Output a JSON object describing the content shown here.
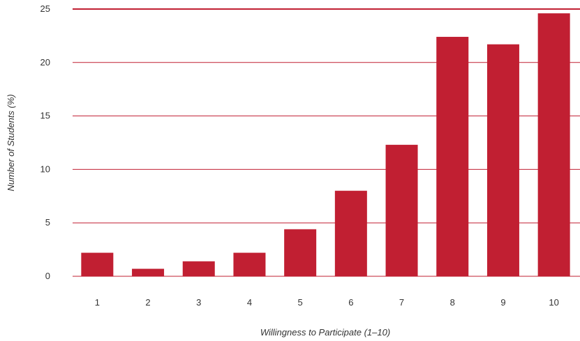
{
  "chart_data": {
    "type": "bar",
    "categories": [
      "1",
      "2",
      "3",
      "4",
      "5",
      "6",
      "7",
      "8",
      "9",
      "10"
    ],
    "values": [
      2.2,
      0.7,
      1.4,
      2.2,
      4.4,
      8.0,
      12.3,
      22.4,
      21.7,
      24.6
    ],
    "title": "",
    "xlabel": "Willingness to Participate (1–10)",
    "ylabel": "Number of Students (%)",
    "ylim": [
      0,
      25
    ],
    "yticks": [
      "0",
      "5",
      "10",
      "15",
      "20",
      "25"
    ],
    "grid": true,
    "legend": "none",
    "colors": {
      "bar": "#c11f32",
      "grid": "#c11f32",
      "text": "#333333"
    }
  }
}
